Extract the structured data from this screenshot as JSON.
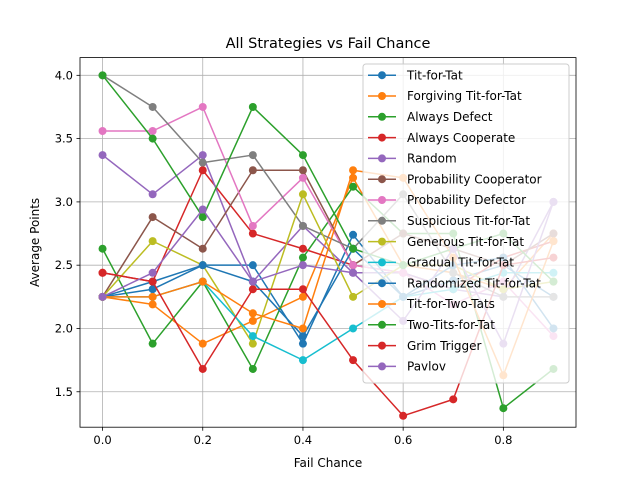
{
  "chart_data": {
    "type": "line",
    "title": "All Strategies vs Fail Chance",
    "xlabel": "Fail Chance",
    "ylabel": "Average Points",
    "x": [
      0.0,
      0.1,
      0.2,
      0.3,
      0.4,
      0.5,
      0.6,
      0.7,
      0.8,
      0.9
    ],
    "xlim": [
      -0.045,
      0.945
    ],
    "ylim": [
      1.22,
      4.14
    ],
    "x_ticks": [
      "0.0",
      "0.2",
      "0.4",
      "0.6",
      "0.8"
    ],
    "x_tick_values": [
      0.0,
      0.2,
      0.4,
      0.6,
      0.8
    ],
    "y_ticks": [
      "1.5",
      "2.0",
      "2.5",
      "3.0",
      "3.5",
      "4.0"
    ],
    "y_tick_values": [
      1.5,
      2.0,
      2.5,
      3.0,
      3.5,
      4.0
    ],
    "grid": true,
    "legend_position": "upper right",
    "series": [
      {
        "name": "Tit-for-Tat",
        "color": "#1f77b4",
        "values": [
          2.25,
          2.31,
          2.5,
          2.5,
          1.88,
          2.74,
          2.25,
          2.38,
          2.5,
          2.25
        ]
      },
      {
        "name": "Forgiving Tit-for-Tat",
        "color": "#ff7f0e",
        "values": [
          2.25,
          2.19,
          1.88,
          2.06,
          2.25,
          3.19,
          2.5,
          2.44,
          2.31,
          2.75
        ]
      },
      {
        "name": "Always Defect",
        "color": "#2ca02c",
        "values": [
          2.63,
          1.88,
          2.37,
          1.68,
          2.56,
          3.12,
          2.75,
          2.75,
          1.37,
          1.68
        ]
      },
      {
        "name": "Always Cooperate",
        "color": "#d62728",
        "values": [
          2.44,
          2.37,
          3.25,
          2.75,
          2.63,
          2.5,
          2.44,
          2.31,
          2.56,
          2.69
        ]
      },
      {
        "name": "Random",
        "color": "#9467bd",
        "values": [
          3.37,
          3.06,
          3.37,
          2.37,
          2.81,
          2.44,
          2.44,
          2.31,
          2.25,
          3.0
        ]
      },
      {
        "name": "Probability Cooperator",
        "color": "#8c564b",
        "values": [
          2.25,
          2.88,
          2.63,
          3.25,
          3.25,
          2.5,
          2.75,
          2.63,
          2.5,
          2.75
        ]
      },
      {
        "name": "Probability Defector",
        "color": "#e377c2",
        "values": [
          3.56,
          3.56,
          3.75,
          2.81,
          3.19,
          2.5,
          2.44,
          2.19,
          2.37,
          1.94
        ]
      },
      {
        "name": "Suspicious Tit-for-Tat",
        "color": "#7f7f7f",
        "values": [
          4.0,
          3.75,
          3.31,
          3.37,
          2.81,
          2.63,
          3.06,
          2.44,
          2.25,
          2.25
        ]
      },
      {
        "name": "Generous Tit-for-Tat",
        "color": "#bcbd22",
        "values": [
          2.25,
          2.69,
          2.5,
          1.88,
          3.06,
          2.25,
          2.5,
          2.5,
          2.31,
          2.37
        ]
      },
      {
        "name": "Gradual Tit-for-Tat",
        "color": "#17becf",
        "values": [
          2.25,
          2.25,
          2.37,
          1.94,
          1.75,
          2.0,
          2.25,
          2.31,
          2.44,
          2.44
        ]
      },
      {
        "name": "Randomized Tit-for-Tat",
        "color": "#1f77b4",
        "values": [
          2.25,
          2.37,
          2.5,
          2.37,
          1.94,
          2.63,
          2.25,
          2.5,
          2.56,
          2.0
        ]
      },
      {
        "name": "Tit-for-Two-Tats",
        "color": "#ff7f0e",
        "values": [
          2.25,
          2.25,
          2.37,
          2.12,
          2.0,
          3.25,
          3.19,
          2.56,
          1.63,
          2.69
        ]
      },
      {
        "name": "Two-Tits-for-Tat",
        "color": "#2ca02c",
        "values": [
          4.0,
          3.5,
          2.88,
          3.75,
          3.37,
          2.63,
          2.5,
          2.63,
          2.75,
          2.37
        ]
      },
      {
        "name": "Grim Trigger",
        "color": "#d62728",
        "values": [
          2.44,
          2.37,
          1.68,
          2.31,
          2.31,
          1.75,
          1.31,
          1.44,
          2.5,
          2.56
        ]
      },
      {
        "name": "Pavlov",
        "color": "#9467bd",
        "values": [
          2.25,
          2.44,
          2.94,
          2.37,
          2.5,
          2.44,
          2.06,
          2.63,
          1.88,
          3.0
        ]
      }
    ]
  }
}
